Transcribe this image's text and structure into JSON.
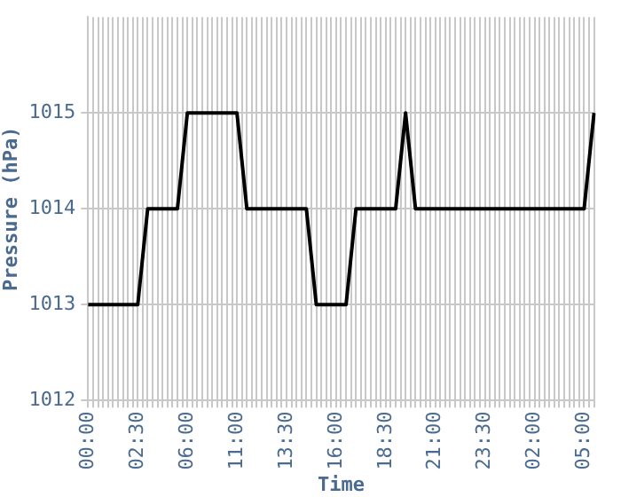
{
  "chart_data": {
    "type": "line",
    "xlabel": "Time",
    "ylabel": "Pressure (hPa)",
    "categories": [
      "00:00",
      null,
      null,
      null,
      null,
      null,
      null,
      null,
      null,
      null,
      "02:30",
      null,
      null,
      null,
      null,
      null,
      null,
      null,
      null,
      null,
      "06:00",
      null,
      null,
      null,
      null,
      null,
      null,
      null,
      null,
      null,
      "11:00",
      null,
      null,
      null,
      null,
      null,
      null,
      null,
      null,
      null,
      "13:30",
      null,
      null,
      null,
      null,
      null,
      null,
      null,
      null,
      null,
      "16:00",
      null,
      null,
      null,
      null,
      null,
      null,
      null,
      null,
      null,
      "18:30",
      null,
      null,
      null,
      null,
      null,
      null,
      null,
      null,
      null,
      "21:00",
      null,
      null,
      null,
      null,
      null,
      null,
      null,
      null,
      null,
      "23:30",
      null,
      null,
      null,
      null,
      null,
      null,
      null,
      null,
      null,
      "02:00",
      null,
      null,
      null,
      null,
      null,
      null,
      null,
      null,
      null,
      "05:00",
      null,
      null
    ],
    "series": [
      {
        "color": "#000000",
        "values": [
          1013,
          1013,
          1013,
          1013,
          1013,
          1013,
          1013,
          1013,
          1013,
          1013,
          1013,
          1013.5,
          1014,
          1014,
          1014,
          1014,
          1014,
          1014,
          1014,
          1014.5,
          1015,
          1015,
          1015,
          1015,
          1015,
          1015,
          1015,
          1015,
          1015,
          1015,
          1015,
          1014.5,
          1014,
          1014,
          1014,
          1014,
          1014,
          1014,
          1014,
          1014,
          1014,
          1014,
          1014,
          1014,
          1014,
          1013.5,
          1013,
          1013,
          1013,
          1013,
          1013,
          1013,
          1013,
          1013.5,
          1014,
          1014,
          1014,
          1014,
          1014,
          1014,
          1014,
          1014,
          1014,
          1014.5,
          1015,
          1014.5,
          1014,
          1014,
          1014,
          1014,
          1014,
          1014,
          1014,
          1014,
          1014,
          1014,
          1014,
          1014,
          1014,
          1014,
          1014,
          1014,
          1014,
          1014,
          1014,
          1014,
          1014,
          1014,
          1014,
          1014,
          1014,
          1014,
          1014,
          1014,
          1014,
          1014,
          1014,
          1014,
          1014,
          1014,
          1014,
          1014.5,
          1015
        ]
      }
    ],
    "ylim": [
      1012,
      1016
    ],
    "yticks": [
      1012,
      1013,
      1014,
      1015
    ],
    "grid": true,
    "legend": false,
    "marker": "none",
    "line_style": "solid"
  }
}
